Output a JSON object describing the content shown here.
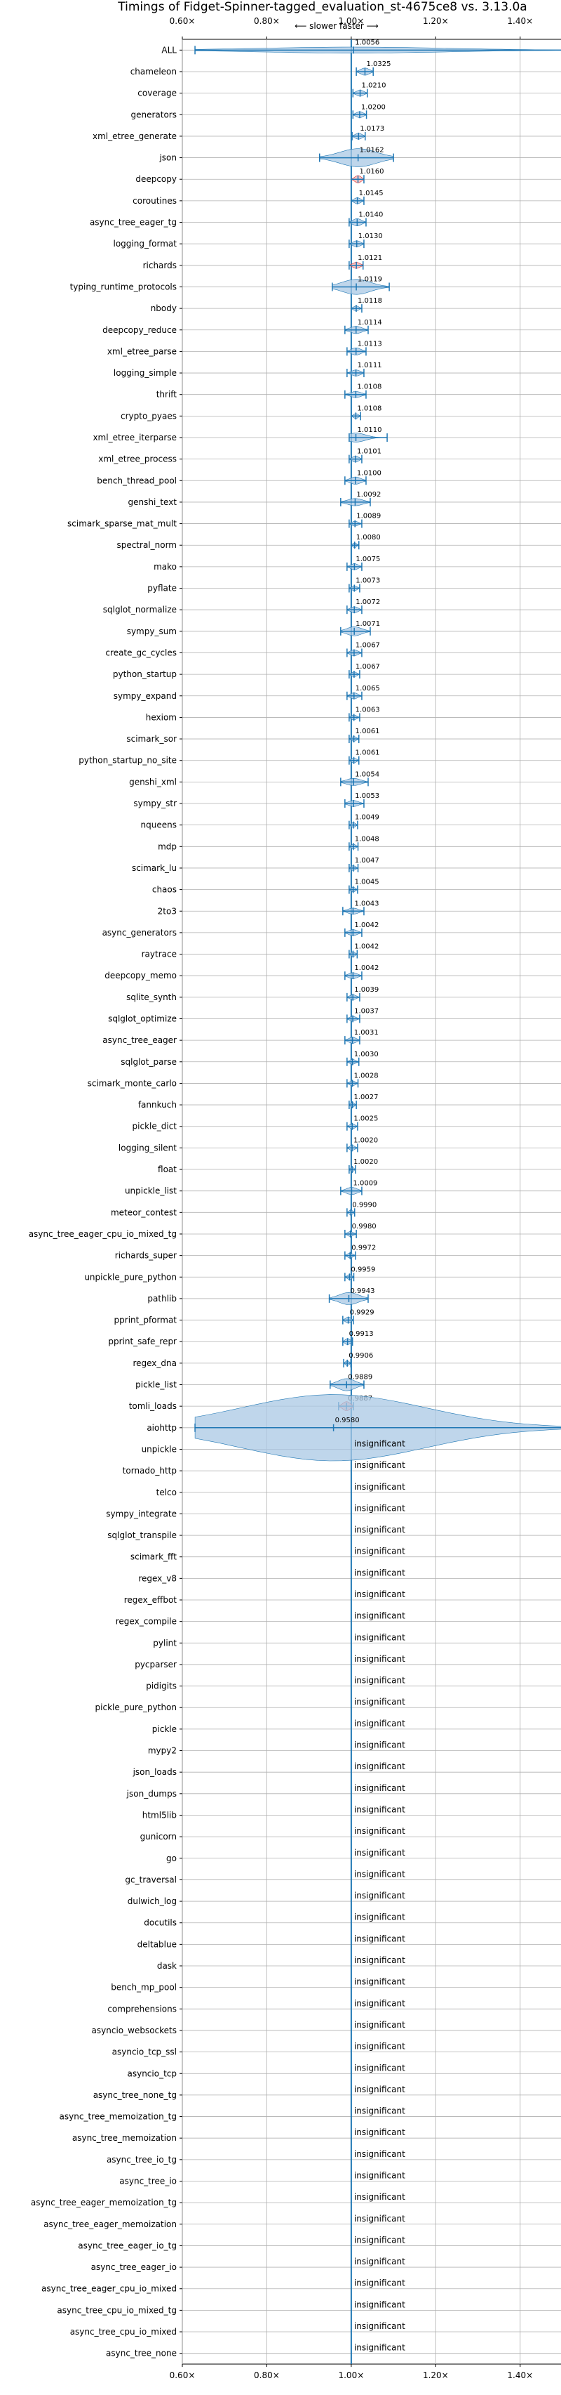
{
  "chart_data": {
    "type": "violin",
    "title": "Timings of Fidget-Spinner-tagged_evaluation_st-4675ce8 vs. 3.13.0a",
    "direction_label": "⟵ slower   faster ⟶",
    "xlim": [
      0.6,
      1.5
    ],
    "xticks": [
      0.6,
      0.8,
      1.0,
      1.2,
      1.4
    ],
    "xtick_labels": [
      "0.60×",
      "0.80×",
      "1.00×",
      "1.20×",
      "1.40×"
    ],
    "reference_line": 1.0,
    "colors": {
      "violin": "#1f77b4",
      "violin_fill": "#a9c8e4",
      "reference": "#1f77b4",
      "grid": "#b0b0b0",
      "slower": "#d62728"
    },
    "significant": [
      {
        "name": "ALL",
        "label": "1.0056",
        "value": 1.0056,
        "min": 0.63,
        "max": 1.5,
        "spread": 0.01
      },
      {
        "name": "chameleon",
        "label": "1.0325",
        "value": 1.0325,
        "min": 1.012,
        "max": 1.052,
        "spread": 0.012
      },
      {
        "name": "coverage",
        "label": "1.0210",
        "value": 1.021,
        "min": 1.004,
        "max": 1.038,
        "spread": 0.01
      },
      {
        "name": "generators",
        "label": "1.0200",
        "value": 1.02,
        "min": 1.004,
        "max": 1.036,
        "spread": 0.01
      },
      {
        "name": "xml_etree_generate",
        "label": "1.0173",
        "value": 1.0173,
        "min": 1.002,
        "max": 1.033,
        "spread": 0.01
      },
      {
        "name": "json",
        "label": "1.0162",
        "value": 1.0162,
        "min": 0.925,
        "max": 1.1,
        "spread": 0.03
      },
      {
        "name": "deepcopy",
        "label": "1.0160",
        "value": 1.016,
        "min": 1.0,
        "max": 1.03,
        "spread": 0.012,
        "slower": true
      },
      {
        "name": "coroutines",
        "label": "1.0145",
        "value": 1.0145,
        "min": 1.0,
        "max": 1.03,
        "spread": 0.01
      },
      {
        "name": "async_tree_eager_tg",
        "label": "1.0140",
        "value": 1.014,
        "min": 0.995,
        "max": 1.035,
        "spread": 0.012
      },
      {
        "name": "logging_format",
        "label": "1.0130",
        "value": 1.013,
        "min": 0.995,
        "max": 1.03,
        "spread": 0.01
      },
      {
        "name": "richards",
        "label": "1.0121",
        "value": 1.0121,
        "min": 0.995,
        "max": 1.028,
        "spread": 0.01,
        "slower": true
      },
      {
        "name": "typing_runtime_protocols",
        "label": "1.0119",
        "value": 1.0119,
        "min": 0.955,
        "max": 1.09,
        "spread": 0.025
      },
      {
        "name": "nbody",
        "label": "1.0118",
        "value": 1.0118,
        "min": 1.0,
        "max": 1.025,
        "spread": 0.008
      },
      {
        "name": "deepcopy_reduce",
        "label": "1.0114",
        "value": 1.0114,
        "min": 0.985,
        "max": 1.04,
        "spread": 0.012
      },
      {
        "name": "xml_etree_parse",
        "label": "1.0113",
        "value": 1.0113,
        "min": 0.99,
        "max": 1.035,
        "spread": 0.012
      },
      {
        "name": "logging_simple",
        "label": "1.0111",
        "value": 1.0111,
        "min": 0.99,
        "max": 1.03,
        "spread": 0.01
      },
      {
        "name": "thrift",
        "label": "1.0108",
        "value": 1.0108,
        "min": 0.985,
        "max": 1.035,
        "spread": 0.01
      },
      {
        "name": "crypto_pyaes",
        "label": "1.0108",
        "value": 1.0108,
        "min": 1.0,
        "max": 1.022,
        "spread": 0.008
      },
      {
        "name": "xml_etree_iterparse",
        "label": "1.0110",
        "value": 1.011,
        "min": 0.995,
        "max": 1.085,
        "spread": 0.015
      },
      {
        "name": "xml_etree_process",
        "label": "1.0101",
        "value": 1.0101,
        "min": 0.995,
        "max": 1.025,
        "spread": 0.01
      },
      {
        "name": "bench_thread_pool",
        "label": "1.0100",
        "value": 1.01,
        "min": 0.985,
        "max": 1.035,
        "spread": 0.012
      },
      {
        "name": "genshi_text",
        "label": "1.0092",
        "value": 1.0092,
        "min": 0.975,
        "max": 1.045,
        "spread": 0.012
      },
      {
        "name": "scimark_sparse_mat_mult",
        "label": "1.0089",
        "value": 1.0089,
        "min": 0.995,
        "max": 1.025,
        "spread": 0.008
      },
      {
        "name": "spectral_norm",
        "label": "1.0080",
        "value": 1.008,
        "min": 1.0,
        "max": 1.018,
        "spread": 0.008
      },
      {
        "name": "mako",
        "label": "1.0075",
        "value": 1.0075,
        "min": 0.99,
        "max": 1.025,
        "spread": 0.01
      },
      {
        "name": "pyflate",
        "label": "1.0073",
        "value": 1.0073,
        "min": 0.995,
        "max": 1.02,
        "spread": 0.008
      },
      {
        "name": "sqlglot_normalize",
        "label": "1.0072",
        "value": 1.0072,
        "min": 0.99,
        "max": 1.025,
        "spread": 0.01
      },
      {
        "name": "sympy_sum",
        "label": "1.0071",
        "value": 1.0071,
        "min": 0.975,
        "max": 1.045,
        "spread": 0.015
      },
      {
        "name": "create_gc_cycles",
        "label": "1.0067",
        "value": 1.0067,
        "min": 0.99,
        "max": 1.025,
        "spread": 0.01
      },
      {
        "name": "python_startup",
        "label": "1.0067",
        "value": 1.0067,
        "min": 0.995,
        "max": 1.02,
        "spread": 0.008
      },
      {
        "name": "sympy_expand",
        "label": "1.0065",
        "value": 1.0065,
        "min": 0.99,
        "max": 1.025,
        "spread": 0.01
      },
      {
        "name": "hexiom",
        "label": "1.0063",
        "value": 1.0063,
        "min": 0.995,
        "max": 1.02,
        "spread": 0.008
      },
      {
        "name": "scimark_sor",
        "label": "1.0061",
        "value": 1.0061,
        "min": 0.995,
        "max": 1.018,
        "spread": 0.008
      },
      {
        "name": "python_startup_no_site",
        "label": "1.0061",
        "value": 1.0061,
        "min": 0.995,
        "max": 1.018,
        "spread": 0.008
      },
      {
        "name": "genshi_xml",
        "label": "1.0054",
        "value": 1.0054,
        "min": 0.975,
        "max": 1.04,
        "spread": 0.012
      },
      {
        "name": "sympy_str",
        "label": "1.0053",
        "value": 1.0053,
        "min": 0.985,
        "max": 1.03,
        "spread": 0.01
      },
      {
        "name": "nqueens",
        "label": "1.0049",
        "value": 1.0049,
        "min": 0.995,
        "max": 1.015,
        "spread": 0.008
      },
      {
        "name": "mdp",
        "label": "1.0048",
        "value": 1.0048,
        "min": 0.995,
        "max": 1.016,
        "spread": 0.008
      },
      {
        "name": "scimark_lu",
        "label": "1.0047",
        "value": 1.0047,
        "min": 0.995,
        "max": 1.016,
        "spread": 0.008
      },
      {
        "name": "chaos",
        "label": "1.0045",
        "value": 1.0045,
        "min": 0.995,
        "max": 1.015,
        "spread": 0.008
      },
      {
        "name": "2to3",
        "label": "1.0043",
        "value": 1.0043,
        "min": 0.98,
        "max": 1.03,
        "spread": 0.01
      },
      {
        "name": "async_generators",
        "label": "1.0042",
        "value": 1.0042,
        "min": 0.985,
        "max": 1.025,
        "spread": 0.01
      },
      {
        "name": "raytrace",
        "label": "1.0042",
        "value": 1.0042,
        "min": 0.995,
        "max": 1.014,
        "spread": 0.008
      },
      {
        "name": "deepcopy_memo",
        "label": "1.0042",
        "value": 1.0042,
        "min": 0.985,
        "max": 1.025,
        "spread": 0.01
      },
      {
        "name": "sqlite_synth",
        "label": "1.0039",
        "value": 1.0039,
        "min": 0.99,
        "max": 1.02,
        "spread": 0.008
      },
      {
        "name": "sqlglot_optimize",
        "label": "1.0037",
        "value": 1.0037,
        "min": 0.99,
        "max": 1.02,
        "spread": 0.008
      },
      {
        "name": "async_tree_eager",
        "label": "1.0031",
        "value": 1.0031,
        "min": 0.985,
        "max": 1.02,
        "spread": 0.01
      },
      {
        "name": "sqlglot_parse",
        "label": "1.0030",
        "value": 1.003,
        "min": 0.99,
        "max": 1.018,
        "spread": 0.008
      },
      {
        "name": "scimark_monte_carlo",
        "label": "1.0028",
        "value": 1.0028,
        "min": 0.99,
        "max": 1.016,
        "spread": 0.008
      },
      {
        "name": "fannkuch",
        "label": "1.0027",
        "value": 1.0027,
        "min": 0.995,
        "max": 1.012,
        "spread": 0.008
      },
      {
        "name": "pickle_dict",
        "label": "1.0025",
        "value": 1.0025,
        "min": 0.99,
        "max": 1.015,
        "spread": 0.008
      },
      {
        "name": "logging_silent",
        "label": "1.0020",
        "value": 1.002,
        "min": 0.99,
        "max": 1.015,
        "spread": 0.008
      },
      {
        "name": "float",
        "label": "1.0020",
        "value": 1.002,
        "min": 0.995,
        "max": 1.01,
        "spread": 0.008
      },
      {
        "name": "unpickle_list",
        "label": "1.0009",
        "value": 1.0009,
        "min": 0.975,
        "max": 1.025,
        "spread": 0.012
      },
      {
        "name": "meteor_contest",
        "label": "0.9990",
        "value": 0.999,
        "min": 0.99,
        "max": 1.008,
        "spread": 0.008
      },
      {
        "name": "async_tree_eager_cpu_io_mixed_tg",
        "label": "0.9980",
        "value": 0.998,
        "min": 0.985,
        "max": 1.012,
        "spread": 0.008
      },
      {
        "name": "richards_super",
        "label": "0.9972",
        "value": 0.9972,
        "min": 0.985,
        "max": 1.01,
        "spread": 0.008
      },
      {
        "name": "unpickle_pure_python",
        "label": "0.9959",
        "value": 0.9959,
        "min": 0.985,
        "max": 1.006,
        "spread": 0.008
      },
      {
        "name": "pathlib",
        "label": "0.9943",
        "value": 0.9943,
        "min": 0.948,
        "max": 1.04,
        "spread": 0.02
      },
      {
        "name": "pprint_pformat",
        "label": "0.9929",
        "value": 0.9929,
        "min": 0.98,
        "max": 1.005,
        "spread": 0.01
      },
      {
        "name": "pprint_safe_repr",
        "label": "0.9913",
        "value": 0.9913,
        "min": 0.98,
        "max": 1.003,
        "spread": 0.01
      },
      {
        "name": "regex_dna",
        "label": "0.9906",
        "value": 0.9906,
        "min": 0.982,
        "max": 0.999,
        "spread": 0.008
      },
      {
        "name": "pickle_list",
        "label": "0.9889",
        "value": 0.9889,
        "min": 0.95,
        "max": 1.03,
        "spread": 0.02
      },
      {
        "name": "tomli_loads",
        "label": "0.9887",
        "value": 0.9887,
        "min": 0.97,
        "max": 1.005,
        "spread": 0.015,
        "slower": true
      },
      {
        "name": "aiohttp",
        "label": "0.9580",
        "value": 0.958,
        "min": 0.63,
        "max": 1.5,
        "spread": 0.11
      }
    ],
    "insignificant_label": "insignificant",
    "insignificant": [
      "unpickle",
      "tornado_http",
      "telco",
      "sympy_integrate",
      "sqlglot_transpile",
      "scimark_fft",
      "regex_v8",
      "regex_effbot",
      "regex_compile",
      "pylint",
      "pycparser",
      "pidigits",
      "pickle_pure_python",
      "pickle",
      "mypy2",
      "json_loads",
      "json_dumps",
      "html5lib",
      "gunicorn",
      "go",
      "gc_traversal",
      "dulwich_log",
      "docutils",
      "deltablue",
      "dask",
      "bench_mp_pool",
      "comprehensions",
      "asyncio_websockets",
      "asyncio_tcp_ssl",
      "asyncio_tcp",
      "async_tree_none_tg",
      "async_tree_memoization_tg",
      "async_tree_memoization",
      "async_tree_io_tg",
      "async_tree_io",
      "async_tree_eager_memoization_tg",
      "async_tree_eager_memoization",
      "async_tree_eager_io_tg",
      "async_tree_eager_io",
      "async_tree_eager_cpu_io_mixed",
      "async_tree_cpu_io_mixed_tg",
      "async_tree_cpu_io_mixed",
      "async_tree_none"
    ]
  }
}
